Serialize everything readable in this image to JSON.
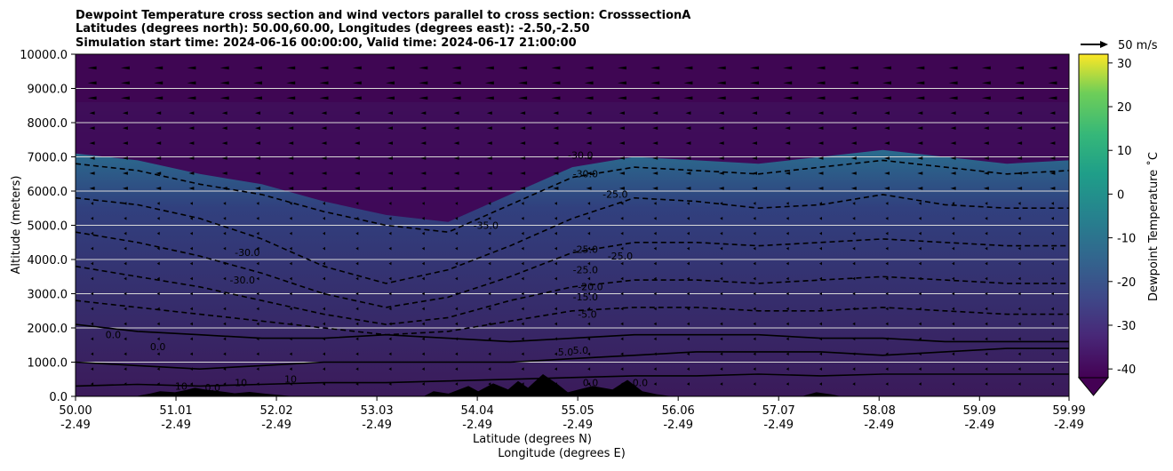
{
  "chart_data": {
    "type": "heatmap",
    "title_lines": [
      "Dewpoint Temperature cross section and wind vectors parallel to cross section: CrosssectionA",
      "Latitudes (degrees north): 50.00,60.00, Longitudes (degrees east): -2.50,-2.50",
      "Simulation start time: 2024-06-16 00:00:00, Valid time: 2024-06-17 21:00:00"
    ],
    "xlabel_line1": "Latitude (degrees N)",
    "xlabel_line2": "Longitude (degrees E)",
    "ylabel": "Altitude (meters)",
    "x_ticks": [
      {
        "lat": "50.00",
        "lon": "-2.49",
        "v": 50.0
      },
      {
        "lat": "51.01",
        "lon": "-2.49",
        "v": 51.01
      },
      {
        "lat": "52.02",
        "lon": "-2.49",
        "v": 52.02
      },
      {
        "lat": "53.03",
        "lon": "-2.49",
        "v": 53.03
      },
      {
        "lat": "54.04",
        "lon": "-2.49",
        "v": 54.04
      },
      {
        "lat": "55.05",
        "lon": "-2.49",
        "v": 55.05
      },
      {
        "lat": "56.06",
        "lon": "-2.49",
        "v": 56.06
      },
      {
        "lat": "57.07",
        "lon": "-2.49",
        "v": 57.07
      },
      {
        "lat": "58.08",
        "lon": "-2.49",
        "v": 58.08
      },
      {
        "lat": "59.09",
        "lon": "-2.49",
        "v": 59.09
      },
      {
        "lat": "59.99",
        "lon": "-2.49",
        "v": 59.99
      }
    ],
    "xlim": [
      50.0,
      59.99
    ],
    "y_ticks": [
      "0.0",
      "1000.0",
      "2000.0",
      "3000.0",
      "4000.0",
      "5000.0",
      "6000.0",
      "7000.0",
      "8000.0",
      "9000.0",
      "10000.0"
    ],
    "ylim": [
      0,
      10000
    ],
    "grid": "horizontal",
    "colorbar": {
      "label": "Dewpoint Temperature ˚C",
      "ticks": [
        30,
        20,
        10,
        0,
        -10,
        -20,
        -30,
        -40
      ],
      "range": [
        -42,
        32
      ],
      "extend": "min",
      "cmap": "viridis"
    },
    "wind_key": {
      "label": "50 m/s"
    },
    "contour_levels": [
      {
        "level": -30,
        "alt": [
          6800,
          6600,
          6200,
          5900,
          5400,
          5000,
          4800,
          5600,
          6400,
          6700,
          6600,
          6500,
          6700,
          6900,
          6700,
          6500,
          6600
        ]
      },
      {
        "level": -25,
        "alt": [
          5800,
          5600,
          5200,
          4600,
          3800,
          3300,
          3700,
          4400,
          5200,
          5800,
          5700,
          5500,
          5600,
          5900,
          5600,
          5500,
          5500
        ]
      },
      {
        "level": -20,
        "alt": [
          4800,
          4500,
          4100,
          3600,
          3000,
          2600,
          2900,
          3500,
          4200,
          4500,
          4500,
          4400,
          4500,
          4600,
          4500,
          4400,
          4400
        ]
      },
      {
        "level": -15,
        "alt": [
          3800,
          3500,
          3200,
          2800,
          2400,
          2100,
          2300,
          2800,
          3200,
          3400,
          3400,
          3300,
          3400,
          3500,
          3400,
          3300,
          3300
        ]
      },
      {
        "level": -5,
        "alt": [
          2800,
          2600,
          2400,
          2200,
          2000,
          1800,
          1900,
          2200,
          2500,
          2600,
          2600,
          2500,
          2500,
          2600,
          2500,
          2400,
          2400
        ]
      },
      {
        "level": 0,
        "alt": [
          2100,
          1900,
          1800,
          1700,
          1700,
          1800,
          1700,
          1600,
          1700,
          1800,
          1800,
          1800,
          1700,
          1700,
          1600,
          1600,
          1600
        ]
      },
      {
        "level": 5,
        "alt": [
          1000,
          900,
          800,
          900,
          1000,
          1000,
          1000,
          1000,
          1100,
          1200,
          1300,
          1300,
          1300,
          1200,
          1300,
          1400,
          1400
        ]
      },
      {
        "level": 10,
        "alt": [
          300,
          350,
          300,
          350,
          400,
          400,
          450,
          500,
          550,
          600,
          600,
          650,
          600,
          650,
          650,
          650,
          650
        ]
      }
    ],
    "contour_labels": [
      {
        "text": "-30.0",
        "lat": 54.95,
        "alt": 6950
      },
      {
        "text": "-30.0",
        "lat": 55.0,
        "alt": 6400
      },
      {
        "text": "-25.0",
        "lat": 55.3,
        "alt": 5800
      },
      {
        "text": "-35.0",
        "lat": 54.0,
        "alt": 4900
      },
      {
        "text": "-25.0",
        "lat": 55.0,
        "alt": 4200
      },
      {
        "text": "-25.0",
        "lat": 55.35,
        "alt": 4000
      },
      {
        "text": "-25.0",
        "lat": 55.0,
        "alt": 3600
      },
      {
        "text": "-20.0",
        "lat": 55.05,
        "alt": 3100
      },
      {
        "text": "-15.0",
        "lat": 55.0,
        "alt": 2800
      },
      {
        "text": "-5.0",
        "lat": 55.05,
        "alt": 2300
      },
      {
        "text": "-30.0",
        "lat": 51.6,
        "alt": 4100
      },
      {
        "text": "-30.0",
        "lat": 51.55,
        "alt": 3300
      },
      {
        "text": "0.0",
        "lat": 50.3,
        "alt": 1700
      },
      {
        "text": "0.0",
        "lat": 50.75,
        "alt": 1350
      },
      {
        "text": "5.0",
        "lat": 54.85,
        "alt": 1200
      },
      {
        "text": "5.0",
        "lat": 55.0,
        "alt": 1250
      },
      {
        "text": "10",
        "lat": 51.0,
        "alt": 200
      },
      {
        "text": "10",
        "lat": 51.6,
        "alt": 300
      },
      {
        "text": "10",
        "lat": 52.1,
        "alt": 400
      },
      {
        "text": "0.0",
        "lat": 51.3,
        "alt": 150
      },
      {
        "text": "0.0",
        "lat": 55.1,
        "alt": 300
      },
      {
        "text": "0.0",
        "lat": 55.6,
        "alt": 300
      }
    ],
    "terrain": [
      {
        "lat": 50.0,
        "alt": 0
      },
      {
        "lat": 50.6,
        "alt": 0
      },
      {
        "lat": 50.75,
        "alt": 80
      },
      {
        "lat": 50.85,
        "alt": 150
      },
      {
        "lat": 51.0,
        "alt": 120
      },
      {
        "lat": 51.1,
        "alt": 180
      },
      {
        "lat": 51.2,
        "alt": 250
      },
      {
        "lat": 51.3,
        "alt": 200
      },
      {
        "lat": 51.45,
        "alt": 150
      },
      {
        "lat": 51.6,
        "alt": 90
      },
      {
        "lat": 51.75,
        "alt": 130
      },
      {
        "lat": 51.9,
        "alt": 80
      },
      {
        "lat": 52.05,
        "alt": 40
      },
      {
        "lat": 52.2,
        "alt": 0
      },
      {
        "lat": 53.5,
        "alt": 0
      },
      {
        "lat": 53.6,
        "alt": 150
      },
      {
        "lat": 53.75,
        "alt": 80
      },
      {
        "lat": 53.95,
        "alt": 300
      },
      {
        "lat": 54.05,
        "alt": 150
      },
      {
        "lat": 54.2,
        "alt": 380
      },
      {
        "lat": 54.35,
        "alt": 200
      },
      {
        "lat": 54.45,
        "alt": 450
      },
      {
        "lat": 54.55,
        "alt": 250
      },
      {
        "lat": 54.7,
        "alt": 650
      },
      {
        "lat": 54.85,
        "alt": 350
      },
      {
        "lat": 54.95,
        "alt": 120
      },
      {
        "lat": 55.2,
        "alt": 300
      },
      {
        "lat": 55.4,
        "alt": 200
      },
      {
        "lat": 55.55,
        "alt": 480
      },
      {
        "lat": 55.7,
        "alt": 150
      },
      {
        "lat": 55.85,
        "alt": 60
      },
      {
        "lat": 56.0,
        "alt": 0
      },
      {
        "lat": 57.3,
        "alt": 0
      },
      {
        "lat": 57.45,
        "alt": 120
      },
      {
        "lat": 57.6,
        "alt": 60
      },
      {
        "lat": 57.7,
        "alt": 0
      },
      {
        "lat": 59.99,
        "alt": 0
      }
    ]
  }
}
